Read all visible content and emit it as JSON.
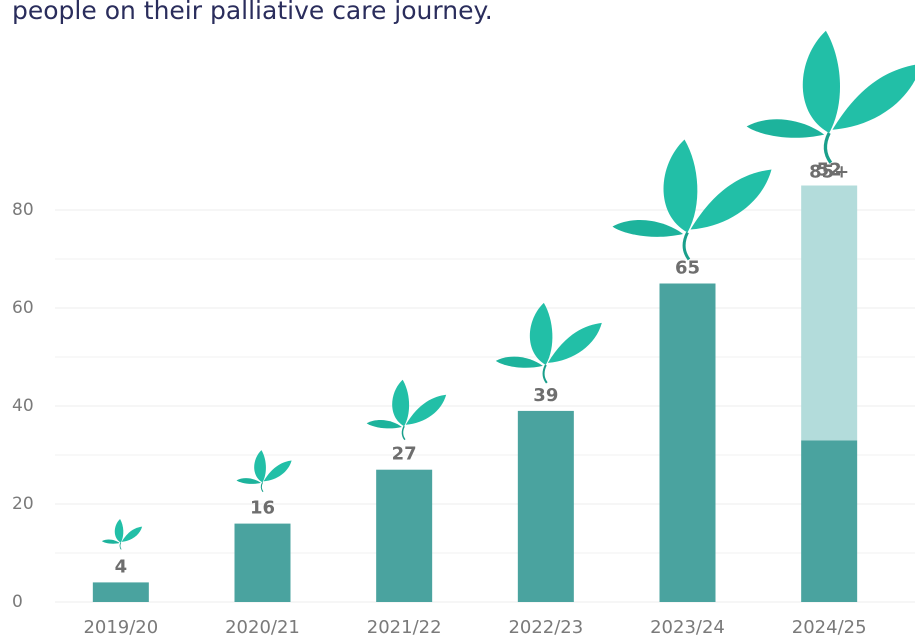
{
  "chart_data": {
    "type": "bar",
    "title": "people on their palliative care journey.",
    "categories": [
      "2019/20",
      "2020/21",
      "2021/22",
      "2022/23",
      "2023/24",
      "2024/25"
    ],
    "series": [
      {
        "color": "#4aa39f",
        "values": [
          4,
          16,
          27,
          39,
          65,
          33
        ]
      },
      {
        "color": "#b3dcdb",
        "values": [
          null,
          null,
          null,
          null,
          null,
          52
        ]
      }
    ],
    "totals": [
      null,
      null,
      null,
      null,
      null,
      85
    ],
    "total_labels": [
      null,
      null,
      null,
      null,
      null,
      "85+"
    ],
    "ylim": [
      0,
      90
    ],
    "yticks": [
      0,
      20,
      40,
      60,
      80
    ],
    "minor_yticks": [
      10,
      30,
      50,
      70
    ],
    "grid": true
  }
}
